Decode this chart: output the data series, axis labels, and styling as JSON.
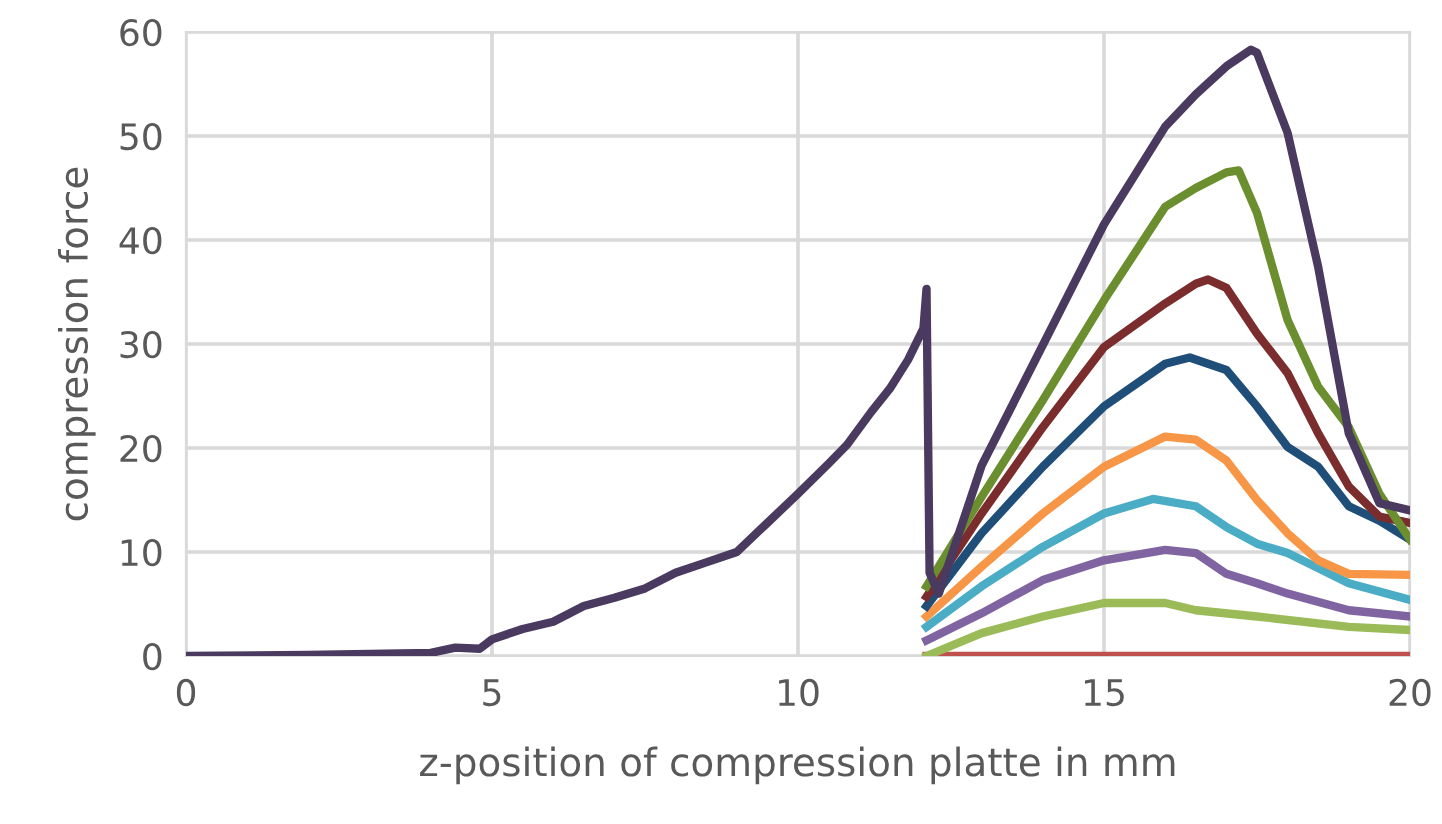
{
  "chart_data": {
    "type": "line",
    "xlabel": "z-position of compression platte in mm",
    "ylabel": "compression force",
    "xlim": [
      0,
      20
    ],
    "ylim": [
      0,
      60
    ],
    "xticks": [
      0,
      5,
      10,
      15,
      20
    ],
    "yticks": [
      0,
      10,
      20,
      30,
      40,
      50,
      60
    ],
    "grid": true,
    "legend": false,
    "line_style": "solid",
    "marker": "none",
    "series": [
      {
        "color": "#c0504d",
        "x": [
          12.1,
          20
        ],
        "values": [
          0,
          0
        ]
      },
      {
        "color": "#9bbb59",
        "x": [
          12.1,
          13,
          14,
          15,
          16,
          16.5,
          17.5,
          19,
          20
        ],
        "values": [
          0,
          2.2,
          3.8,
          5.1,
          5.1,
          4.4,
          3.8,
          2.8,
          2.5
        ]
      },
      {
        "color": "#8064a2",
        "x": [
          12.1,
          13,
          14,
          15,
          16,
          16.5,
          17,
          17.5,
          18,
          19,
          20
        ],
        "values": [
          1.5,
          4.1,
          7.3,
          9.2,
          10.2,
          9.9,
          7.9,
          7,
          6,
          4.4,
          3.8
        ]
      },
      {
        "color": "#4bacc6",
        "x": [
          12.1,
          13,
          14,
          15,
          15.8,
          16.5,
          17,
          17.5,
          18,
          19,
          20
        ],
        "values": [
          2.8,
          6.7,
          10.5,
          13.7,
          15.1,
          14.4,
          12.4,
          10.8,
          9.9,
          7,
          5.4
        ]
      },
      {
        "color": "#f79646",
        "x": [
          12.1,
          13,
          14,
          15,
          16,
          16.5,
          17,
          17.5,
          18,
          18.5,
          19,
          20
        ],
        "values": [
          3.8,
          8.6,
          13.7,
          18.2,
          21.1,
          20.8,
          18.8,
          15,
          11.8,
          9.2,
          7.9,
          7.8
        ]
      },
      {
        "color": "#1f4e79",
        "x": [
          12.1,
          13,
          14,
          15,
          16,
          16.4,
          17,
          17.5,
          18,
          18.5,
          19,
          19.5,
          20
        ],
        "values": [
          4.8,
          11.8,
          18.2,
          24,
          28.1,
          28.7,
          27.5,
          24,
          20.1,
          18.2,
          14.4,
          13,
          11.2
        ]
      },
      {
        "color": "#7b2c2c",
        "x": [
          12.1,
          13,
          14,
          15,
          16,
          16.5,
          16.7,
          17,
          17.5,
          18,
          18.5,
          19,
          19.5,
          20
        ],
        "values": [
          5.7,
          13.7,
          22,
          29.7,
          33.9,
          35.8,
          36.2,
          35.4,
          31,
          27.2,
          21.4,
          16.3,
          13.4,
          12.8
        ]
      },
      {
        "color": "#6b8e2f",
        "x": [
          12.1,
          13,
          14,
          15,
          16,
          16.5,
          17,
          17.2,
          17.5,
          18,
          18.5,
          19,
          19.5,
          20
        ],
        "values": [
          6.7,
          15.3,
          24.6,
          34.2,
          43.2,
          45,
          46.5,
          46.7,
          42.6,
          32.3,
          25.9,
          22,
          15.6,
          11.2
        ]
      },
      {
        "color": "#4b3a60",
        "x": [
          0,
          2,
          4,
          4.4,
          4.8,
          5,
          5.5,
          6,
          6.5,
          7,
          7.5,
          8,
          8.5,
          9,
          9.5,
          10,
          10.5,
          10.8,
          11.2,
          11.5,
          11.8,
          12.05,
          12.1,
          12.15,
          12.3,
          13,
          14,
          15,
          16,
          16.5,
          17,
          17.4,
          17.5,
          18,
          18.5,
          19,
          19.5,
          20
        ],
        "values": [
          0,
          0.1,
          0.3,
          0.8,
          0.7,
          1.6,
          2.6,
          3.3,
          4.8,
          5.6,
          6.5,
          8,
          9,
          10,
          12.8,
          15.6,
          18.5,
          20.3,
          23.5,
          25.7,
          28.5,
          31.5,
          35.3,
          8,
          6,
          18.3,
          29.9,
          41.5,
          50.9,
          54,
          56.7,
          58.3,
          58,
          50.3,
          37.4,
          21.4,
          14.7,
          14
        ]
      }
    ]
  }
}
